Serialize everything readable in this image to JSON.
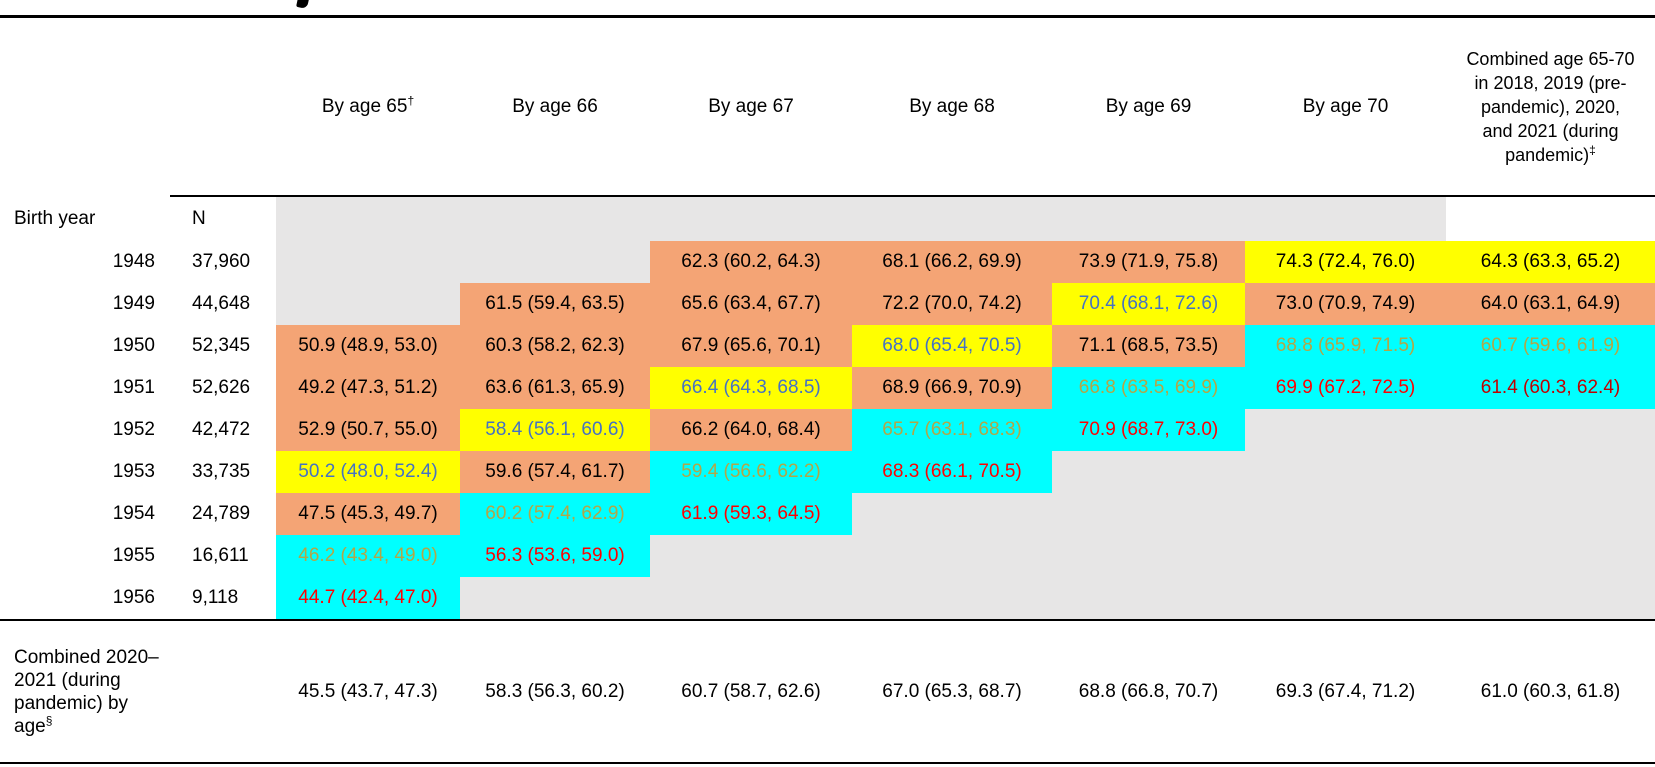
{
  "table": {
    "colors": {
      "salmon": "#F4A475",
      "yellow": "#FFFF00",
      "cyan": "#00FFFF",
      "gray": "#E7E6E6",
      "blue": "#4472C4",
      "olive": "#B2A647",
      "red": "#FF0000",
      "darkred": "#C00000"
    },
    "row_header": {
      "label": "Birth year",
      "n_label": "N"
    },
    "columns": [
      {
        "label": "By age 65",
        "sup": "†"
      },
      {
        "label": "By age 66",
        "sup": ""
      },
      {
        "label": "By age 67",
        "sup": ""
      },
      {
        "label": "By age 68",
        "sup": ""
      },
      {
        "label": "By age 69",
        "sup": ""
      },
      {
        "label": "By age 70",
        "sup": ""
      },
      {
        "label": "Combined age 65-70 in 2018, 2019 (pre-pandemic), 2020, and 2021 (during pandemic)",
        "sup": "‡"
      }
    ],
    "rows": [
      {
        "year": "1948",
        "n": "37,960",
        "cells": [
          {
            "text": "",
            "bg": "gray",
            "fg": "black"
          },
          {
            "text": "",
            "bg": "gray",
            "fg": "black"
          },
          {
            "text": "62.3 (60.2, 64.3)",
            "bg": "salmon",
            "fg": "black"
          },
          {
            "text": "68.1 (66.2, 69.9)",
            "bg": "salmon",
            "fg": "black"
          },
          {
            "text": "73.9 (71.9, 75.8)",
            "bg": "salmon",
            "fg": "black"
          },
          {
            "text": "74.3 (72.4, 76.0)",
            "bg": "yellow",
            "fg": "black"
          },
          {
            "text": "64.3 (63.3, 65.2)",
            "bg": "yellow",
            "fg": "black"
          }
        ]
      },
      {
        "year": "1949",
        "n": "44,648",
        "cells": [
          {
            "text": "",
            "bg": "gray",
            "fg": "black"
          },
          {
            "text": "61.5 (59.4, 63.5)",
            "bg": "salmon",
            "fg": "black"
          },
          {
            "text": "65.6 (63.4, 67.7)",
            "bg": "salmon",
            "fg": "black"
          },
          {
            "text": "72.2 (70.0, 74.2)",
            "bg": "salmon",
            "fg": "black"
          },
          {
            "text": "70.4 (68.1, 72.6)",
            "bg": "yellow",
            "fg": "blue"
          },
          {
            "text": "73.0 (70.9, 74.9)",
            "bg": "salmon",
            "fg": "black"
          },
          {
            "text": "64.0 (63.1, 64.9)",
            "bg": "salmon",
            "fg": "black"
          }
        ]
      },
      {
        "year": "1950",
        "n": "52,345",
        "cells": [
          {
            "text": "50.9 (48.9, 53.0)",
            "bg": "salmon",
            "fg": "black"
          },
          {
            "text": "60.3 (58.2, 62.3)",
            "bg": "salmon",
            "fg": "black"
          },
          {
            "text": "67.9 (65.6, 70.1)",
            "bg": "salmon",
            "fg": "black"
          },
          {
            "text": "68.0 (65.4, 70.5)",
            "bg": "yellow",
            "fg": "blue"
          },
          {
            "text": "71.1 (68.5, 73.5)",
            "bg": "salmon",
            "fg": "black"
          },
          {
            "text": "68.8 (65.9, 71.5)",
            "bg": "cyan",
            "fg": "olive"
          },
          {
            "text": "60.7 (59.6, 61.9)",
            "bg": "cyan",
            "fg": "olive"
          }
        ]
      },
      {
        "year": "1951",
        "n": "52,626",
        "cells": [
          {
            "text": "49.2 (47.3, 51.2)",
            "bg": "salmon",
            "fg": "black"
          },
          {
            "text": "63.6 (61.3, 65.9)",
            "bg": "salmon",
            "fg": "black"
          },
          {
            "text": "66.4 (64.3, 68.5)",
            "bg": "yellow",
            "fg": "blue"
          },
          {
            "text": "68.9 (66.9, 70.9)",
            "bg": "salmon",
            "fg": "black"
          },
          {
            "text": "66.8 (63.5, 69.9)",
            "bg": "cyan",
            "fg": "olive"
          },
          {
            "text": "69.9 (67.2, 72.5)",
            "bg": "cyan",
            "fg": "red"
          },
          {
            "text": "61.4 (60.3, 62.4)",
            "bg": "cyan",
            "fg": "darkred"
          }
        ]
      },
      {
        "year": "1952",
        "n": "42,472",
        "cells": [
          {
            "text": "52.9 (50.7, 55.0)",
            "bg": "salmon",
            "fg": "black"
          },
          {
            "text": "58.4 (56.1, 60.6)",
            "bg": "yellow",
            "fg": "blue"
          },
          {
            "text": "66.2 (64.0, 68.4)",
            "bg": "salmon",
            "fg": "black"
          },
          {
            "text": "65.7 (63.1, 68.3)",
            "bg": "cyan",
            "fg": "olive"
          },
          {
            "text": "70.9 (68.7, 73.0)",
            "bg": "cyan",
            "fg": "red"
          },
          {
            "text": "",
            "bg": "gray",
            "fg": "black"
          },
          {
            "text": "",
            "bg": "gray",
            "fg": "black"
          }
        ]
      },
      {
        "year": "1953",
        "n": "33,735",
        "cells": [
          {
            "text": "50.2 (48.0, 52.4)",
            "bg": "yellow",
            "fg": "blue"
          },
          {
            "text": "59.6 (57.4, 61.7)",
            "bg": "salmon",
            "fg": "black"
          },
          {
            "text": "59.4 (56.6, 62.2)",
            "bg": "cyan",
            "fg": "olive"
          },
          {
            "text": "68.3 (66.1, 70.5)",
            "bg": "cyan",
            "fg": "red"
          },
          {
            "text": "",
            "bg": "gray",
            "fg": "black"
          },
          {
            "text": "",
            "bg": "gray",
            "fg": "black"
          },
          {
            "text": "",
            "bg": "gray",
            "fg": "black"
          }
        ]
      },
      {
        "year": "1954",
        "n": "24,789",
        "cells": [
          {
            "text": "47.5 (45.3, 49.7)",
            "bg": "salmon",
            "fg": "black"
          },
          {
            "text": "60.2 (57.4, 62.9)",
            "bg": "cyan",
            "fg": "olive"
          },
          {
            "text": "61.9 (59.3, 64.5)",
            "bg": "cyan",
            "fg": "red"
          },
          {
            "text": "",
            "bg": "gray",
            "fg": "black"
          },
          {
            "text": "",
            "bg": "gray",
            "fg": "black"
          },
          {
            "text": "",
            "bg": "gray",
            "fg": "black"
          },
          {
            "text": "",
            "bg": "gray",
            "fg": "black"
          }
        ]
      },
      {
        "year": "1955",
        "n": "16,611",
        "cells": [
          {
            "text": "46.2 (43.4, 49.0)",
            "bg": "cyan",
            "fg": "olive"
          },
          {
            "text": "56.3 (53.6, 59.0)",
            "bg": "cyan",
            "fg": "red"
          },
          {
            "text": "",
            "bg": "gray",
            "fg": "black"
          },
          {
            "text": "",
            "bg": "gray",
            "fg": "black"
          },
          {
            "text": "",
            "bg": "gray",
            "fg": "black"
          },
          {
            "text": "",
            "bg": "gray",
            "fg": "black"
          },
          {
            "text": "",
            "bg": "gray",
            "fg": "black"
          }
        ]
      },
      {
        "year": "1956",
        "n": "9,118",
        "cells": [
          {
            "text": "44.7 (42.4, 47.0)",
            "bg": "cyan",
            "fg": "red"
          },
          {
            "text": "",
            "bg": "gray",
            "fg": "black"
          },
          {
            "text": "",
            "bg": "gray",
            "fg": "black"
          },
          {
            "text": "",
            "bg": "gray",
            "fg": "black"
          },
          {
            "text": "",
            "bg": "gray",
            "fg": "black"
          },
          {
            "text": "",
            "bg": "gray",
            "fg": "black"
          },
          {
            "text": "",
            "bg": "gray",
            "fg": "black"
          }
        ]
      }
    ],
    "footer": {
      "label": "Combined 2020–2021 (during pandemic) by age",
      "sup": "§",
      "values": [
        "45.5 (43.7, 47.3)",
        "58.3 (56.3, 60.2)",
        "60.7 (58.7, 62.6)",
        "67.0 (65.3, 68.7)",
        "68.8 (66.8, 70.7)",
        "69.3 (67.4, 71.2)",
        "61.0 (60.3, 61.8)"
      ]
    }
  }
}
